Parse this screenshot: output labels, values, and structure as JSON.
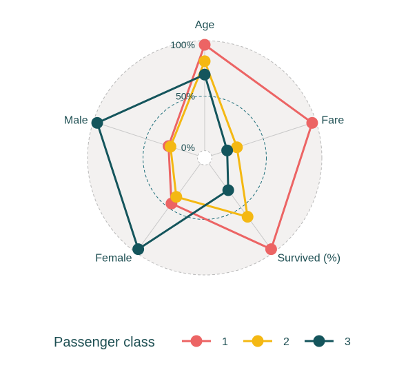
{
  "chart_data": {
    "type": "radar",
    "axes": [
      "Age",
      "Fare",
      "Survived (%)",
      "Female",
      "Male"
    ],
    "ticks": [
      {
        "value": 0,
        "label": "0%"
      },
      {
        "value": 50,
        "label": "50%"
      },
      {
        "value": 100,
        "label": "100%"
      }
    ],
    "range": [
      -10,
      100
    ],
    "legend_title": "Passenger class",
    "legend_position": "bottom",
    "grid": true,
    "colors": {
      "background_fill": "#f3f1f0",
      "outer_ring": "#b9b9b9",
      "gridline_mid": "#1d6e7a",
      "spoke": "#c9c9c9",
      "text": "#1d4e52"
    },
    "series": [
      {
        "name": "1",
        "color": "#ec6464",
        "values": [
          100,
          100,
          100,
          45,
          27
        ]
      },
      {
        "name": "2",
        "color": "#f4b813",
        "values": [
          84,
          23,
          61,
          37,
          25
        ]
      },
      {
        "name": "3",
        "color": "#14555c",
        "values": [
          71,
          13,
          29,
          100,
          100
        ]
      }
    ]
  }
}
